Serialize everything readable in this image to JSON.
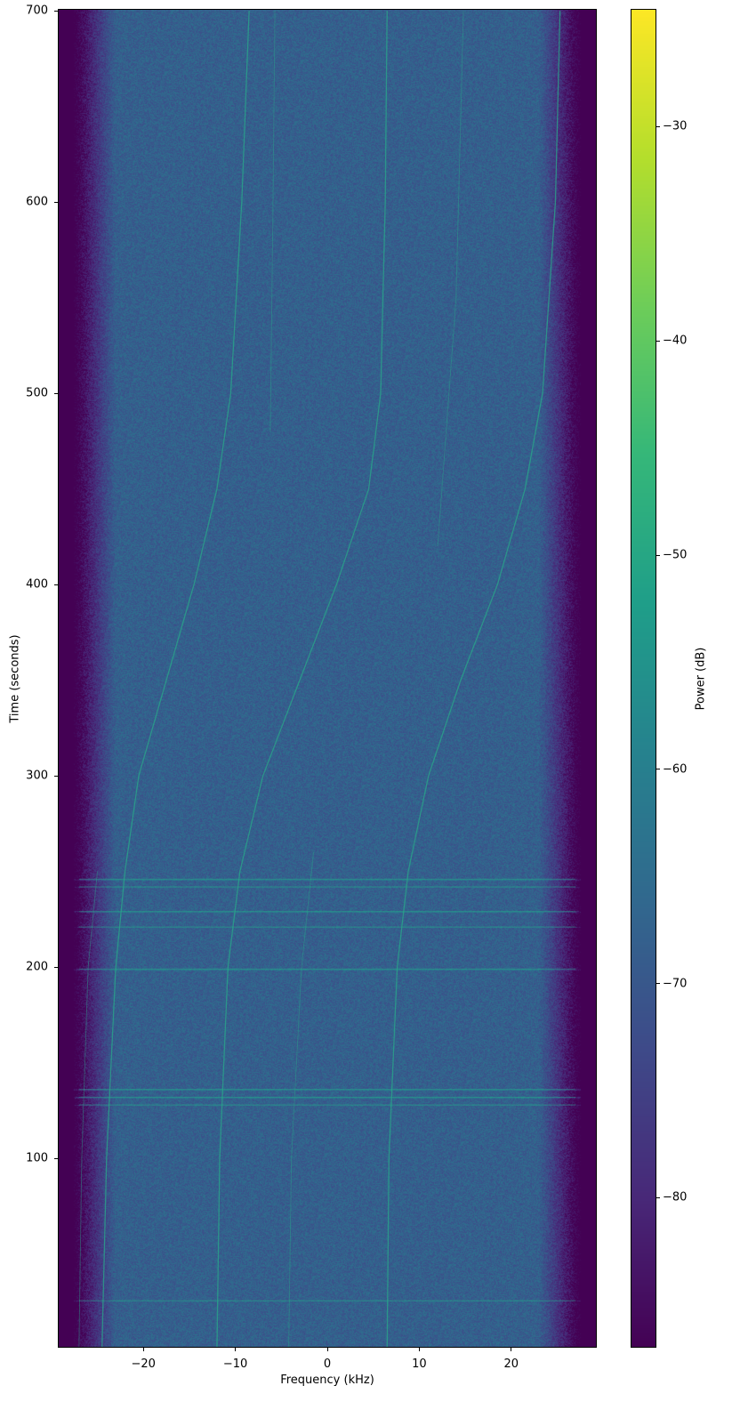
{
  "chart_data": {
    "type": "heatmap",
    "subtype": "spectrogram",
    "title": "",
    "xlabel": "Frequency (kHz)",
    "ylabel": "Time (seconds)",
    "xlim": [
      -29.3,
      29.3
    ],
    "ylim": [
      1,
      701
    ],
    "xticks": [
      -20,
      -10,
      0,
      10,
      20
    ],
    "xtick_labels": [
      "−20",
      "−10",
      "0",
      "10",
      "20"
    ],
    "yticks": [
      100,
      200,
      300,
      400,
      500,
      600,
      700
    ],
    "ytick_labels": [
      "100",
      "200",
      "300",
      "400",
      "500",
      "600",
      "700"
    ],
    "colorbar": {
      "label": "Power (dB)",
      "colormap": "viridis",
      "range": [
        -87,
        -24.5
      ],
      "ticks": [
        -30,
        -40,
        -50,
        -60,
        -70,
        -80
      ],
      "tick_labels": [
        "−30",
        "−40",
        "−50",
        "−60",
        "−70",
        "−80"
      ]
    },
    "noise_floor_db": -68,
    "passband_khz": [
      -27,
      27
    ],
    "out_of_band_db": -87,
    "traces": [
      {
        "points": [
          [
            0,
            -24.5
          ],
          [
            100,
            -24
          ],
          [
            200,
            -23
          ],
          [
            250,
            -22
          ],
          [
            300,
            -20.5
          ],
          [
            350,
            -17.5
          ],
          [
            400,
            -14.5
          ],
          [
            450,
            -12
          ],
          [
            500,
            -10.5
          ],
          [
            600,
            -9.3
          ],
          [
            700,
            -8.5
          ]
        ]
      },
      {
        "points": [
          [
            0,
            -12
          ],
          [
            100,
            -11.7
          ],
          [
            200,
            -10.8
          ],
          [
            250,
            -9.5
          ],
          [
            300,
            -7
          ],
          [
            350,
            -3
          ],
          [
            400,
            1
          ],
          [
            450,
            4.5
          ],
          [
            500,
            5.8
          ],
          [
            600,
            6.3
          ],
          [
            700,
            6.5
          ]
        ]
      },
      {
        "points": [
          [
            0,
            6.5
          ],
          [
            100,
            6.7
          ],
          [
            200,
            7.6
          ],
          [
            250,
            8.8
          ],
          [
            300,
            11
          ],
          [
            350,
            14.5
          ],
          [
            400,
            18.5
          ],
          [
            450,
            21.5
          ],
          [
            500,
            23.4
          ],
          [
            600,
            24.8
          ],
          [
            700,
            25.3
          ]
        ]
      },
      {
        "points": [
          [
            0,
            -27
          ],
          [
            100,
            -26.7
          ],
          [
            200,
            -26
          ],
          [
            250,
            -25
          ]
        ]
      },
      {
        "points": [
          [
            0,
            -4.2
          ],
          [
            100,
            -3.9
          ],
          [
            200,
            -2.8
          ],
          [
            260,
            -1.5
          ]
        ]
      },
      {
        "points": [
          [
            480,
            -6.2
          ],
          [
            600,
            -5.9
          ],
          [
            700,
            -5.7
          ]
        ]
      },
      {
        "points": [
          [
            420,
            12
          ],
          [
            550,
            14
          ],
          [
            700,
            14.8
          ]
        ]
      }
    ],
    "horizontal_bursts_s": [
      25.6,
      128,
      132,
      136,
      199,
      221,
      229,
      242,
      246
    ]
  }
}
